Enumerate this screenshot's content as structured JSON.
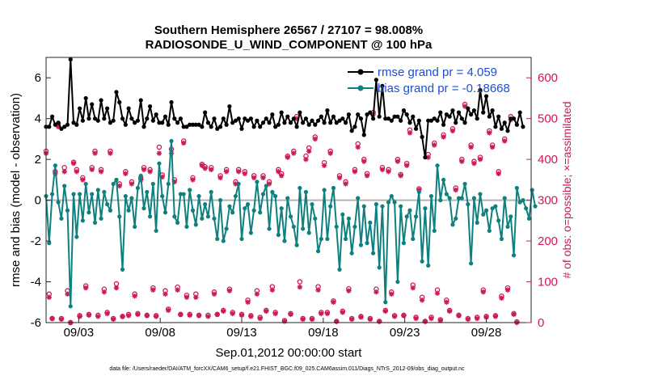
{
  "chart_data": {
    "type": "line",
    "title_line1": "Southern Hemisphere 26567 / 27107 = 98.008%",
    "title_line2": "RADIOSONDE_U_WIND_COMPONENT @ 100 hPa",
    "ylabel_left": "rmse and bias (model - observation)",
    "ylabel_right": "# of obs: o=possible; ×=assimilated",
    "xlabel": "Sep.01,2012 00:00:00 start",
    "footnote": "data file: /Users/raeder/DAI/ATM_forcXX/CAM6_setup/f.e21.FHIST_BGC.f09_025.CAM6assim.011/Diags_NTrS_2012-09/obs_diag_output.nc",
    "x_range": [
      1.0,
      30.75
    ],
    "ylim_left": [
      -6,
      7
    ],
    "ylim_right": [
      0,
      650
    ],
    "xtick_days": [
      3,
      8,
      13,
      18,
      23,
      28
    ],
    "xtick_labels": [
      "09/03",
      "09/08",
      "09/13",
      "09/18",
      "09/23",
      "09/28"
    ],
    "ytick_left": [
      "-6",
      "-4",
      "-2",
      "0",
      "2",
      "4",
      "6"
    ],
    "ytick_right": [
      "0",
      "100",
      "200",
      "300",
      "400",
      "500",
      "600"
    ],
    "legend": [
      "rmse grand pr = 4.059",
      "bias grand pr = -0.18668"
    ],
    "colors": {
      "rmse": "#000000",
      "bias": "#0f8080",
      "obs": "#cc1a55",
      "zero_line": "#b3b3b3"
    },
    "series": [
      {
        "name": "rmse",
        "values": [
          3.6,
          3.6,
          4.1,
          3.7,
          3.8,
          3.5,
          3.6,
          3.7,
          6.9,
          3.8,
          3.7,
          4.5,
          3.9,
          5.0,
          4.0,
          4.7,
          4.0,
          3.9,
          4.9,
          4.0,
          4.5,
          3.8,
          3.9,
          5.3,
          4.8,
          4.0,
          3.7,
          4.5,
          4.0,
          3.8,
          3.9,
          4.9,
          3.6,
          4.0,
          4.6,
          3.9,
          4.2,
          3.8,
          3.8,
          4.1,
          3.7,
          4.8,
          4.0,
          3.8,
          4.0,
          3.6,
          3.6,
          3.7,
          3.7,
          3.7,
          3.7,
          3.6,
          4.3,
          3.8,
          3.6,
          4.0,
          3.5,
          3.6,
          4.0,
          3.7,
          4.6,
          3.8,
          3.9,
          4.0,
          3.5,
          4.0,
          3.9,
          4.0,
          3.6,
          3.9,
          3.6,
          3.8,
          4.0,
          3.8,
          4.2,
          3.6,
          3.7,
          4.3,
          3.8,
          4.1,
          3.8,
          4.0,
          3.6,
          4.3,
          3.8,
          4.0,
          3.7,
          3.9,
          3.7,
          3.9,
          4.1,
          3.8,
          4.4,
          3.8,
          4.1,
          3.8,
          3.9,
          4.0,
          3.8,
          4.2,
          3.4,
          3.6,
          4.2,
          4.0,
          3.2,
          4.2,
          4.3,
          4.0,
          5.9,
          4.1,
          5.6,
          4.0,
          4.0,
          3.9,
          4.1,
          4.1,
          3.9,
          4.4,
          4.2,
          3.8,
          4.1,
          3.5,
          3.9,
          3.1,
          2.1,
          3.9,
          3.9,
          4.0,
          3.9,
          4.3,
          3.7,
          4.2,
          4.1,
          4.4,
          3.8,
          4.3,
          4.0,
          3.8,
          4.5,
          4.2,
          4.4,
          4.0,
          5.4,
          4.3,
          5.1,
          4.1,
          4.4,
          3.6,
          4.1,
          3.5,
          3.8,
          3.4,
          4.0,
          4.0,
          3.7,
          4.3,
          3.6
        ]
      },
      {
        "name": "bias",
        "values": [
          0.2,
          -2.1,
          0.3,
          1.7,
          -0.1,
          -0.9,
          0.7,
          -0.5,
          -5.2,
          0.3,
          -1.8,
          0.3,
          -1.0,
          0.8,
          -0.6,
          0.3,
          -1.1,
          0.5,
          -0.9,
          0.4,
          -0.2,
          -0.5,
          0.8,
          1.0,
          -0.8,
          -3.4,
          0.2,
          -0.5,
          0.1,
          -1.3,
          0.6,
          1.2,
          -0.4,
          0.4,
          -0.8,
          0.8,
          -1.5,
          1.8,
          0.2,
          -0.6,
          0.8,
          2.9,
          -0.8,
          -1.1,
          0.3,
          0.3,
          -1.3,
          0.5,
          -0.5,
          -1.2,
          0.2,
          -0.9,
          -0.2,
          -0.8,
          0.4,
          -0.9,
          -1.9,
          0.0,
          -2.0,
          -1.4,
          -0.3,
          -0.6,
          0.2,
          0.8,
          -1.9,
          -0.4,
          -0.2,
          -1.6,
          -0.5,
          0.9,
          -0.6,
          0.3,
          0.7,
          -1.4,
          0.4,
          0.2,
          -1.7,
          -0.4,
          -2.0,
          0.1,
          -0.8,
          -1.3,
          -2.2,
          0.6,
          -1.4,
          0.4,
          -1.6,
          -0.2,
          -0.9,
          -2.5,
          -1.9,
          0.5,
          -1.9,
          -0.3,
          0.6,
          -1.3,
          -3.4,
          -0.7,
          -1.9,
          -0.9,
          -2.6,
          -1.3,
          0.1,
          -2.2,
          -0.3,
          -2.1,
          -1.1,
          -2.6,
          -0.2,
          -3.3,
          -0.3,
          -5.0,
          -0.1,
          0.2,
          -0.1,
          -4.0,
          -0.3,
          -2.1,
          -0.8,
          -0.5,
          -1.9,
          -0.8,
          0.4,
          -3.0,
          -0.4,
          -3.2,
          0.2,
          -1.5,
          1.7,
          0.0,
          1.0,
          0.3,
          0.1,
          -1.2,
          -0.9,
          0.1,
          0.1,
          0.8,
          -0.2,
          -3.1,
          0.1,
          -1.1,
          0.3,
          -0.7,
          -0.5,
          -1.5,
          -0.4,
          -0.3,
          -1.0,
          -1.9,
          0.1,
          -1.3,
          -0.8,
          -2.7,
          0.6,
          -0.1,
          0.0,
          -0.4,
          -0.9,
          0.5,
          -0.3
        ]
      },
      {
        "name": "obs_possible",
        "values": [
          420,
          70,
          10,
          370,
          488,
          10,
          380,
          78,
          0,
          393,
          375,
          17,
          355,
          90,
          20,
          380,
          420,
          18,
          375,
          82,
          25,
          420,
          10,
          95,
          340,
          15,
          370,
          20,
          345,
          70,
          22,
          355,
          380,
          18,
          375,
          85,
          17,
          430,
          362,
          78,
          33,
          425,
          350,
          87,
          20,
          445,
          67,
          20,
          355,
          70,
          18,
          388,
          382,
          18,
          380,
          75,
          20,
          360,
          30,
          375,
          82,
          25,
          345,
          375,
          20,
          370,
          55,
          17,
          360,
          78,
          13,
          360,
          30,
          345,
          88,
          25,
          375,
          365,
          5,
          408,
          22,
          420,
          505,
          100,
          10,
          408,
          428,
          10,
          455,
          88,
          25,
          392,
          25,
          420,
          53,
          3,
          360,
          28,
          345,
          83,
          10,
          375,
          438,
          15,
          400,
          365,
          10,
          515,
          82,
          3,
          380,
          30,
          375,
          75,
          17,
          400,
          363,
          18,
          390,
          472,
          92,
          13,
          328,
          62,
          3,
          412,
          13,
          440,
          80,
          7,
          460,
          55,
          30,
          475,
          330,
          18,
          400,
          535,
          10,
          435,
          395,
          13,
          405,
          80,
          15,
          470,
          435,
          17,
          370,
          65,
          450,
          85,
          505,
          22,
          2
        ]
      },
      {
        "name": "obs_assimilated",
        "values": [
          415,
          62,
          10,
          365,
          480,
          8,
          370,
          70,
          0,
          390,
          370,
          15,
          350,
          85,
          18,
          375,
          415,
          15,
          370,
          75,
          22,
          415,
          8,
          85,
          335,
          15,
          365,
          17,
          340,
          65,
          20,
          350,
          375,
          17,
          370,
          80,
          15,
          415,
          357,
          70,
          30,
          415,
          345,
          80,
          20,
          440,
          62,
          18,
          350,
          62,
          17,
          385,
          378,
          15,
          375,
          70,
          20,
          355,
          28,
          370,
          78,
          22,
          340,
          370,
          18,
          365,
          50,
          15,
          355,
          70,
          10,
          355,
          28,
          340,
          80,
          22,
          370,
          360,
          3,
          405,
          20,
          415,
          500,
          87,
          8,
          400,
          420,
          8,
          450,
          80,
          22,
          385,
          22,
          415,
          50,
          3,
          355,
          25,
          340,
          78,
          8,
          370,
          430,
          13,
          395,
          360,
          8,
          510,
          75,
          3,
          375,
          28,
          370,
          70,
          15,
          395,
          360,
          17,
          385,
          465,
          85,
          10,
          325,
          55,
          3,
          405,
          10,
          435,
          72,
          5,
          455,
          50,
          28,
          470,
          325,
          17,
          395,
          530,
          8,
          430,
          390,
          10,
          400,
          75,
          13,
          465,
          430,
          15,
          365,
          60,
          445,
          80,
          497,
          20,
          0
        ]
      }
    ]
  }
}
